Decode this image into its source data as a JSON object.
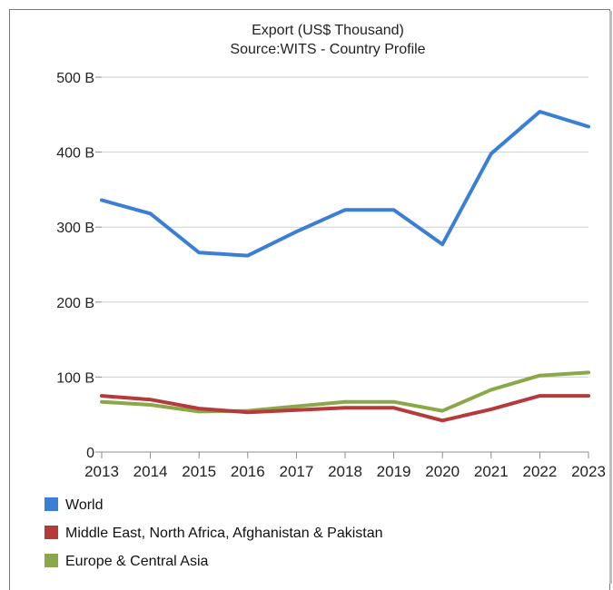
{
  "chart_data": {
    "type": "line",
    "title": "Export (US$ Thousand)",
    "subtitle": "Source:WITS - Country Profile",
    "xlabel": "",
    "ylabel": "",
    "x": [
      "2013",
      "2014",
      "2015",
      "2016",
      "2017",
      "2018",
      "2019",
      "2020",
      "2021",
      "2022",
      "2023"
    ],
    "ylim": [
      0,
      500
    ],
    "yticks": [
      0,
      100,
      200,
      300,
      400,
      500
    ],
    "ytick_labels": [
      "0",
      "100 B",
      "200 B",
      "300 B",
      "400 B",
      "500 B"
    ],
    "grid": true,
    "legend_position": "bottom",
    "series": [
      {
        "name": "World",
        "color": "#3a7fd5",
        "values": [
          336,
          318,
          266,
          262,
          294,
          323,
          323,
          277,
          398,
          454,
          434
        ]
      },
      {
        "name": "Middle East, North Africa, Afghanistan & Pakistan",
        "color": "#b53a3a",
        "values": [
          75,
          70,
          58,
          53,
          56,
          59,
          59,
          42,
          57,
          75,
          75
        ]
      },
      {
        "name": "Europe & Central Asia",
        "color": "#8aa74a",
        "values": [
          67,
          63,
          54,
          55,
          61,
          67,
          67,
          55,
          83,
          102,
          106
        ]
      }
    ]
  }
}
